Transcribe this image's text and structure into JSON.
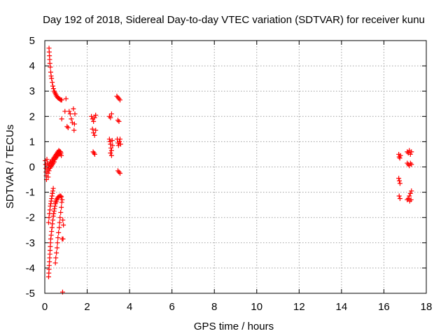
{
  "chart_data": {
    "type": "scatter",
    "title": "Day 192 of 2018, Sidereal Day-to-day VTEC variation (SDTVAR) for receiver kunu",
    "xlabel": "GPS time / hours",
    "ylabel": "SDTVAR / TECUs",
    "xlim": [
      0,
      18
    ],
    "ylim": [
      -5,
      5
    ],
    "xticks": [
      0,
      2,
      4,
      6,
      8,
      10,
      12,
      14,
      16,
      18
    ],
    "yticks": [
      -5,
      -4,
      -3,
      -2,
      -1,
      0,
      1,
      2,
      3,
      4,
      5
    ],
    "grid": true,
    "marker": "+",
    "color": "#ff0000",
    "series": [
      {
        "name": "kunu",
        "points": [
          [
            0.02,
            0.25
          ],
          [
            0.04,
            0.1
          ],
          [
            0.05,
            -0.05
          ],
          [
            0.06,
            -0.2
          ],
          [
            0.07,
            -0.35
          ],
          [
            0.08,
            -0.5
          ],
          [
            0.1,
            0.3
          ],
          [
            0.12,
            0.15
          ],
          [
            0.14,
            -0.1
          ],
          [
            0.15,
            -0.25
          ],
          [
            0.16,
            -0.4
          ],
          [
            0.18,
            0.05
          ],
          [
            0.2,
            -0.15
          ],
          [
            0.22,
            0.1
          ],
          [
            0.24,
            -0.05
          ],
          [
            0.26,
            0.2
          ],
          [
            0.28,
            0.0
          ],
          [
            0.3,
            0.15
          ],
          [
            0.32,
            0.05
          ],
          [
            0.34,
            0.25
          ],
          [
            0.36,
            0.1
          ],
          [
            0.38,
            0.3
          ],
          [
            0.4,
            0.15
          ],
          [
            0.42,
            0.35
          ],
          [
            0.44,
            0.2
          ],
          [
            0.46,
            0.4
          ],
          [
            0.48,
            0.3
          ],
          [
            0.5,
            0.45
          ],
          [
            0.52,
            0.35
          ],
          [
            0.54,
            0.5
          ],
          [
            0.56,
            0.4
          ],
          [
            0.58,
            0.55
          ],
          [
            0.6,
            0.45
          ],
          [
            0.62,
            0.6
          ],
          [
            0.64,
            0.5
          ],
          [
            0.66,
            0.65
          ],
          [
            0.68,
            0.55
          ],
          [
            0.7,
            0.62
          ],
          [
            0.72,
            0.5
          ],
          [
            0.74,
            0.6
          ],
          [
            0.76,
            0.55
          ],
          [
            0.78,
            0.45
          ],
          [
            0.2,
            4.7
          ],
          [
            0.21,
            4.55
          ],
          [
            0.22,
            4.4
          ],
          [
            0.23,
            4.25
          ],
          [
            0.24,
            4.1
          ],
          [
            0.26,
            3.95
          ],
          [
            0.28,
            3.75
          ],
          [
            0.3,
            3.6
          ],
          [
            0.32,
            3.5
          ],
          [
            0.35,
            3.35
          ],
          [
            0.38,
            3.2
          ],
          [
            0.41,
            3.1
          ],
          [
            0.44,
            3.0
          ],
          [
            0.47,
            2.95
          ],
          [
            0.5,
            2.9
          ],
          [
            0.53,
            2.85
          ],
          [
            0.56,
            2.8
          ],
          [
            0.6,
            2.75
          ],
          [
            0.64,
            2.72
          ],
          [
            0.68,
            2.7
          ],
          [
            0.72,
            2.68
          ],
          [
            0.76,
            2.65
          ],
          [
            0.8,
            2.65
          ],
          [
            0.8,
            1.9
          ],
          [
            0.95,
            2.2
          ],
          [
            1.0,
            2.7
          ],
          [
            1.05,
            1.6
          ],
          [
            1.1,
            1.55
          ],
          [
            1.15,
            2.2
          ],
          [
            1.2,
            2.1
          ],
          [
            1.25,
            1.9
          ],
          [
            1.3,
            1.75
          ],
          [
            1.35,
            2.3
          ],
          [
            1.38,
            1.45
          ],
          [
            1.4,
            1.7
          ],
          [
            1.42,
            2.1
          ],
          [
            0.18,
            -4.35
          ],
          [
            0.19,
            -4.2
          ],
          [
            0.2,
            -4.05
          ],
          [
            0.21,
            -3.9
          ],
          [
            0.22,
            -3.75
          ],
          [
            0.23,
            -3.6
          ],
          [
            0.24,
            -3.45
          ],
          [
            0.25,
            -3.3
          ],
          [
            0.26,
            -3.15
          ],
          [
            0.27,
            -3.0
          ],
          [
            0.28,
            -2.85
          ],
          [
            0.3,
            -2.7
          ],
          [
            0.32,
            -2.55
          ],
          [
            0.34,
            -2.4
          ],
          [
            0.36,
            -2.25
          ],
          [
            0.38,
            -2.1
          ],
          [
            0.4,
            -1.95
          ],
          [
            0.42,
            -1.85
          ],
          [
            0.44,
            -1.75
          ],
          [
            0.46,
            -1.65
          ],
          [
            0.48,
            -1.55
          ],
          [
            0.5,
            -1.45
          ],
          [
            0.52,
            -1.4
          ],
          [
            0.54,
            -1.35
          ],
          [
            0.56,
            -1.3
          ],
          [
            0.58,
            -1.25
          ],
          [
            0.62,
            -1.2
          ],
          [
            0.66,
            -1.18
          ],
          [
            0.7,
            -1.15
          ],
          [
            0.75,
            -1.15
          ],
          [
            0.78,
            -1.18
          ],
          [
            0.18,
            -2.2
          ],
          [
            0.2,
            -2.0
          ],
          [
            0.22,
            -1.85
          ],
          [
            0.24,
            -1.7
          ],
          [
            0.26,
            -1.55
          ],
          [
            0.28,
            -1.45
          ],
          [
            0.3,
            -1.35
          ],
          [
            0.32,
            -1.25
          ],
          [
            0.34,
            -1.15
          ],
          [
            0.36,
            -1.05
          ],
          [
            0.38,
            -0.95
          ],
          [
            0.4,
            -0.85
          ],
          [
            0.5,
            -3.8
          ],
          [
            0.52,
            -3.6
          ],
          [
            0.55,
            -3.4
          ],
          [
            0.58,
            -3.2
          ],
          [
            0.6,
            -3.0
          ],
          [
            0.62,
            -2.8
          ],
          [
            0.65,
            -2.6
          ],
          [
            0.68,
            -2.4
          ],
          [
            0.7,
            -2.2
          ],
          [
            0.72,
            -2.0
          ],
          [
            0.75,
            -1.8
          ],
          [
            0.78,
            -1.6
          ],
          [
            0.8,
            -1.4
          ],
          [
            0.82,
            -1.3
          ],
          [
            0.85,
            -2.1
          ],
          [
            0.88,
            -2.3
          ],
          [
            0.82,
            -2.85
          ],
          [
            0.86,
            -2.85
          ],
          [
            0.84,
            -4.95
          ],
          [
            2.2,
            2.0
          ],
          [
            2.25,
            1.9
          ],
          [
            2.3,
            1.8
          ],
          [
            2.35,
            1.95
          ],
          [
            2.4,
            2.05
          ],
          [
            2.25,
            1.5
          ],
          [
            2.3,
            1.35
          ],
          [
            2.35,
            1.25
          ],
          [
            2.4,
            1.45
          ],
          [
            2.28,
            0.6
          ],
          [
            2.32,
            0.55
          ],
          [
            2.36,
            0.5
          ],
          [
            3.05,
            2.0
          ],
          [
            3.1,
            1.95
          ],
          [
            3.15,
            2.1
          ],
          [
            3.05,
            1.1
          ],
          [
            3.08,
            1.0
          ],
          [
            3.1,
            0.9
          ],
          [
            3.12,
            0.75
          ],
          [
            3.15,
            0.65
          ],
          [
            3.18,
            1.05
          ],
          [
            3.2,
            0.85
          ],
          [
            3.1,
            0.55
          ],
          [
            3.15,
            0.45
          ],
          [
            3.4,
            2.8
          ],
          [
            3.45,
            2.75
          ],
          [
            3.5,
            2.7
          ],
          [
            3.55,
            2.65
          ],
          [
            3.45,
            1.85
          ],
          [
            3.5,
            1.8
          ],
          [
            3.42,
            1.1
          ],
          [
            3.45,
            0.95
          ],
          [
            3.48,
            0.85
          ],
          [
            3.52,
            1.0
          ],
          [
            3.55,
            1.1
          ],
          [
            3.58,
            0.9
          ],
          [
            3.45,
            -0.15
          ],
          [
            3.5,
            -0.2
          ],
          [
            3.55,
            -0.25
          ],
          [
            16.7,
            0.5
          ],
          [
            16.72,
            0.4
          ],
          [
            16.75,
            0.35
          ],
          [
            16.78,
            0.45
          ],
          [
            16.7,
            -0.45
          ],
          [
            16.73,
            -0.55
          ],
          [
            16.76,
            -0.65
          ],
          [
            16.72,
            -1.15
          ],
          [
            16.76,
            -1.25
          ],
          [
            17.1,
            0.6
          ],
          [
            17.15,
            0.55
          ],
          [
            17.2,
            0.65
          ],
          [
            17.25,
            0.5
          ],
          [
            17.3,
            0.6
          ],
          [
            17.1,
            0.15
          ],
          [
            17.15,
            0.1
          ],
          [
            17.2,
            0.05
          ],
          [
            17.25,
            0.15
          ],
          [
            17.3,
            0.1
          ],
          [
            17.1,
            -1.3
          ],
          [
            17.15,
            -1.25
          ],
          [
            17.2,
            -1.15
          ],
          [
            17.25,
            -1.05
          ],
          [
            17.3,
            -0.95
          ],
          [
            17.22,
            -1.35
          ],
          [
            17.28,
            -1.3
          ]
        ]
      }
    ]
  }
}
